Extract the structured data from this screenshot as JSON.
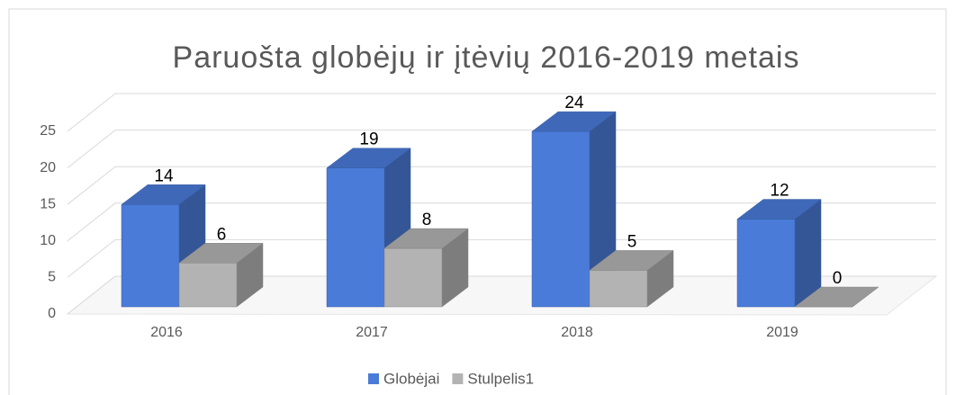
{
  "chart_data": {
    "type": "bar3d",
    "title": "Paruošta globėjų ir įtėvių  2016-2019 metais",
    "categories": [
      "2016",
      "2017",
      "2018",
      "2019"
    ],
    "series": [
      {
        "name": "Globėjai",
        "color": "#4a7bd8",
        "values": [
          14,
          19,
          24,
          12
        ]
      },
      {
        "name": "Stulpelis1",
        "color": "#b3b3b3",
        "values": [
          6,
          8,
          5,
          0
        ]
      }
    ],
    "ylim": [
      0,
      25
    ],
    "yticks": [
      0,
      5,
      10,
      15,
      20,
      25
    ],
    "grid": true,
    "legend": "bottom"
  }
}
